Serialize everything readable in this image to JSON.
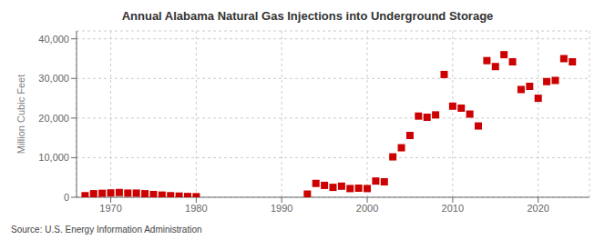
{
  "chart_data": {
    "type": "scatter",
    "title": "Annual Alabama Natural Gas Injections into Underground Storage",
    "ylabel": "Million Cubic Feet",
    "annotations": [
      "Source: U.S. Energy Information Administration"
    ],
    "x": [
      1967,
      1968,
      1969,
      1970,
      1971,
      1972,
      1973,
      1974,
      1975,
      1976,
      1977,
      1978,
      1979,
      1980,
      1993,
      1994,
      1995,
      1996,
      1997,
      1998,
      1999,
      2000,
      2001,
      2002,
      2003,
      2004,
      2005,
      2006,
      2007,
      2008,
      2009,
      2010,
      2011,
      2012,
      2013,
      2014,
      2015,
      2016,
      2017,
      2018,
      2019,
      2020,
      2021,
      2022,
      2023,
      2024
    ],
    "values": [
      400,
      900,
      1000,
      1100,
      1200,
      1050,
      1050,
      900,
      700,
      550,
      400,
      300,
      200,
      150,
      800,
      3500,
      3000,
      2500,
      2800,
      2200,
      2300,
      2200,
      4100,
      3900,
      10200,
      12500,
      15600,
      20500,
      20200,
      20800,
      31000,
      23000,
      22500,
      21000,
      18000,
      34500,
      33000,
      36000,
      34200,
      27200,
      28000,
      25000,
      29200,
      29500,
      35000,
      34200
    ],
    "color": "#cc0000",
    "marker": "square",
    "xlim": [
      1966,
      2026
    ],
    "ylim": [
      0,
      42000
    ],
    "xticks": [
      1970,
      1980,
      1990,
      2000,
      2010,
      2020
    ],
    "yticks": [
      0,
      {
        "value": 10000,
        "label": "10,000"
      },
      {
        "value": 20000,
        "label": "20,000"
      },
      {
        "value": 30000,
        "label": "30,000"
      },
      {
        "value": 40000,
        "label": "40,000"
      }
    ],
    "grid": true
  }
}
